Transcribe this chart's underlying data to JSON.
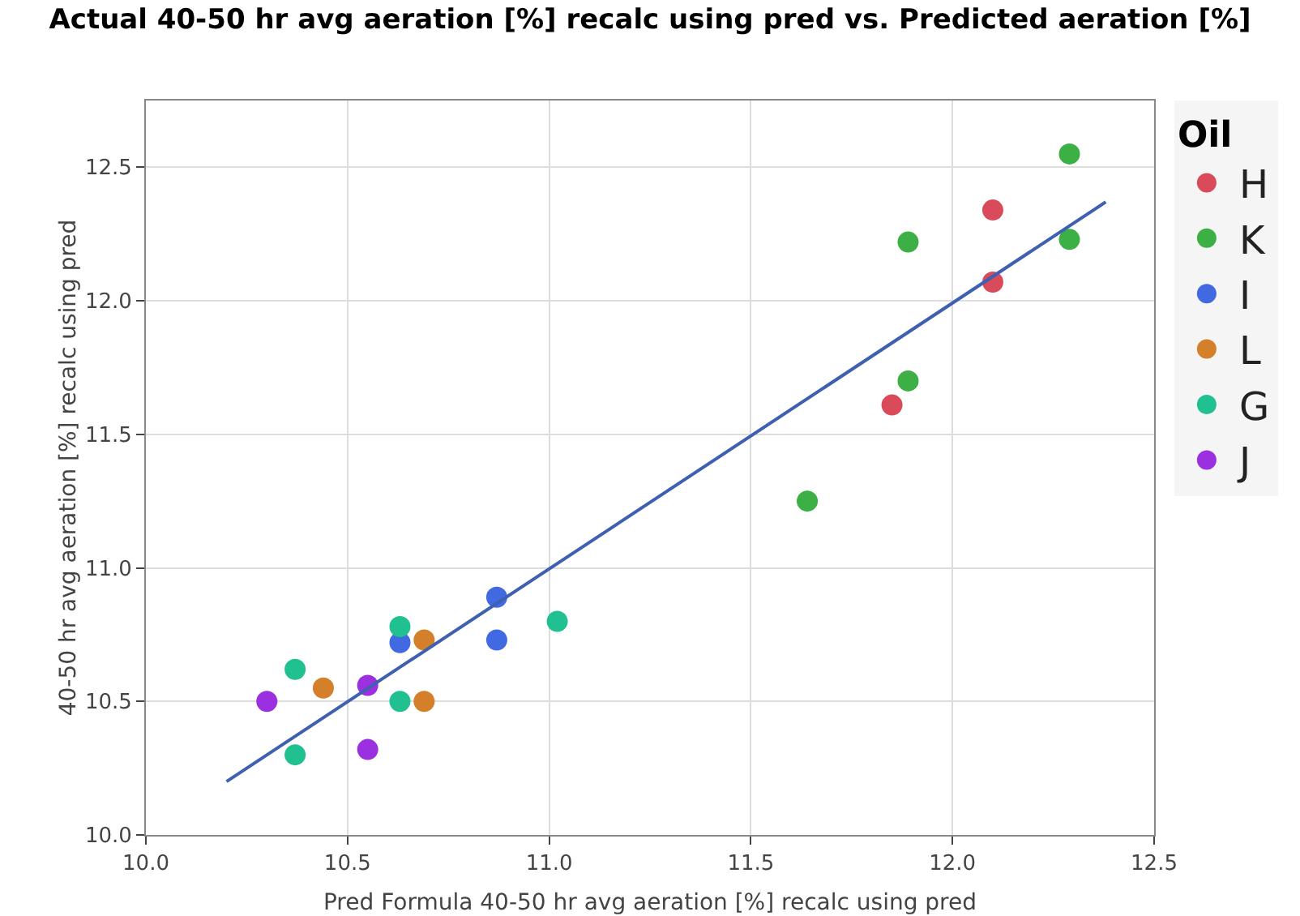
{
  "chart_data": {
    "type": "scatter",
    "title": "Actual 40-50 hr avg aeration [%] recalc using pred vs. Predicted aeration [%]",
    "xlabel": "Pred Formula 40-50 hr avg aeration [%] recalc using pred",
    "ylabel": "40-50 hr avg aeration [%] recalc using pred",
    "legend_title": "Oil",
    "legend": "right",
    "grid": true,
    "marker": "circle",
    "xlim": [
      10,
      12.5
    ],
    "xticks": [
      {
        "value": 10,
        "label": "10.0"
      },
      10.5,
      {
        "value": 11,
        "label": "11.0"
      },
      11.5,
      {
        "value": 12,
        "label": "12.0"
      },
      12.5
    ],
    "ylim": [
      10,
      12.75
    ],
    "yticks": [
      {
        "value": 10,
        "label": "10.0"
      },
      10.5,
      {
        "value": 11,
        "label": "11.0"
      },
      11.5,
      {
        "value": 12,
        "label": "12.0"
      },
      12.5
    ],
    "series": [
      {
        "name": "H",
        "color": "#d94a5a",
        "x": [
          12.1,
          12.1,
          11.85
        ],
        "values": [
          12.34,
          12.07,
          11.61
        ]
      },
      {
        "name": "K",
        "color": "#3cb044",
        "x": [
          12.29,
          11.89,
          12.29,
          11.89,
          11.64
        ],
        "values": [
          12.55,
          12.22,
          12.23,
          11.7,
          11.25
        ]
      },
      {
        "name": "I",
        "color": "#4169e1",
        "x": [
          10.87,
          10.87,
          10.63
        ],
        "values": [
          10.89,
          10.73,
          10.72
        ]
      },
      {
        "name": "L",
        "color": "#d47f2a",
        "x": [
          10.44,
          10.69,
          10.69
        ],
        "values": [
          10.55,
          10.73,
          10.5
        ]
      },
      {
        "name": "G",
        "color": "#20c090",
        "x": [
          10.37,
          10.37,
          10.63,
          10.63,
          11.02
        ],
        "values": [
          10.62,
          10.3,
          10.78,
          10.5,
          10.8
        ]
      },
      {
        "name": "J",
        "color": "#9b30e0",
        "x": [
          10.3,
          10.55,
          10.55
        ],
        "values": [
          10.5,
          10.56,
          10.32
        ]
      },
      {
        "type": "line",
        "color": "#3f5fb0",
        "x": [
          10.2,
          12.38
        ],
        "values": [
          10.2,
          12.37
        ],
        "marker": "none"
      }
    ]
  }
}
